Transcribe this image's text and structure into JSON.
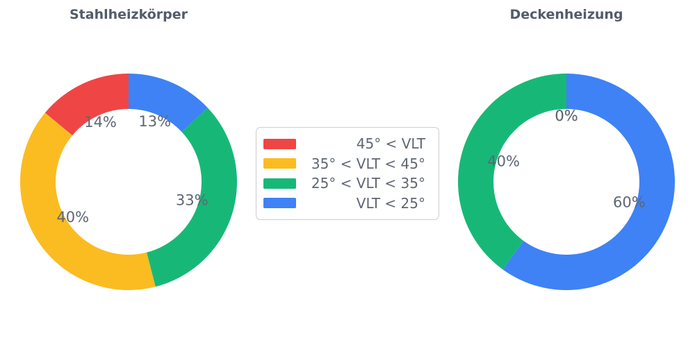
{
  "page": {
    "background_color": "#FFFFFF",
    "title_color": "#535B69",
    "percent_label_color": "#5E6673"
  },
  "legend": {
    "position": "center-between-charts",
    "background_color": "#FFFFFF",
    "border_color": "#CBCDD0",
    "text_color": "#5F6672",
    "items": [
      {
        "label": "45° < VLT",
        "color": "#F04545"
      },
      {
        "label": "35° < VLT < 45°",
        "color": "#FBBC21"
      },
      {
        "label": "25° < VLT < 35°",
        "color": "#17B877"
      },
      {
        "label": "VLT < 25°",
        "color": "#3E82F5"
      }
    ]
  },
  "chart_data": [
    {
      "type": "pie",
      "subtype": "donut",
      "title": "Stahlheizkörper",
      "categories": [
        "45° < VLT",
        "35° < VLT < 45°",
        "25° < VLT < 35°",
        "VLT < 25°"
      ],
      "values_percent": [
        14,
        40,
        33,
        13
      ],
      "data_labels": [
        "14%",
        "40%",
        "33%",
        "13%"
      ],
      "colors": [
        "#F04545",
        "#FBBC21",
        "#17B877",
        "#3E82F5"
      ],
      "start_angle_deg": 90,
      "direction": "counterclockwise",
      "hole_ratio": 0.67,
      "label_color": "#5E6673"
    },
    {
      "type": "pie",
      "subtype": "donut",
      "title": "Deckenheizung",
      "categories": [
        "45° < VLT",
        "35° < VLT < 45°",
        "25° < VLT < 35°",
        "VLT < 25°"
      ],
      "values_percent": [
        0,
        0,
        40,
        60
      ],
      "data_labels": [
        "0%",
        "0%",
        "40%",
        "60%"
      ],
      "colors": [
        "#F04545",
        "#FBBC21",
        "#17B877",
        "#3E82F5"
      ],
      "start_angle_deg": 90,
      "direction": "counterclockwise",
      "hole_ratio": 0.67,
      "label_color": "#5E6673"
    }
  ]
}
